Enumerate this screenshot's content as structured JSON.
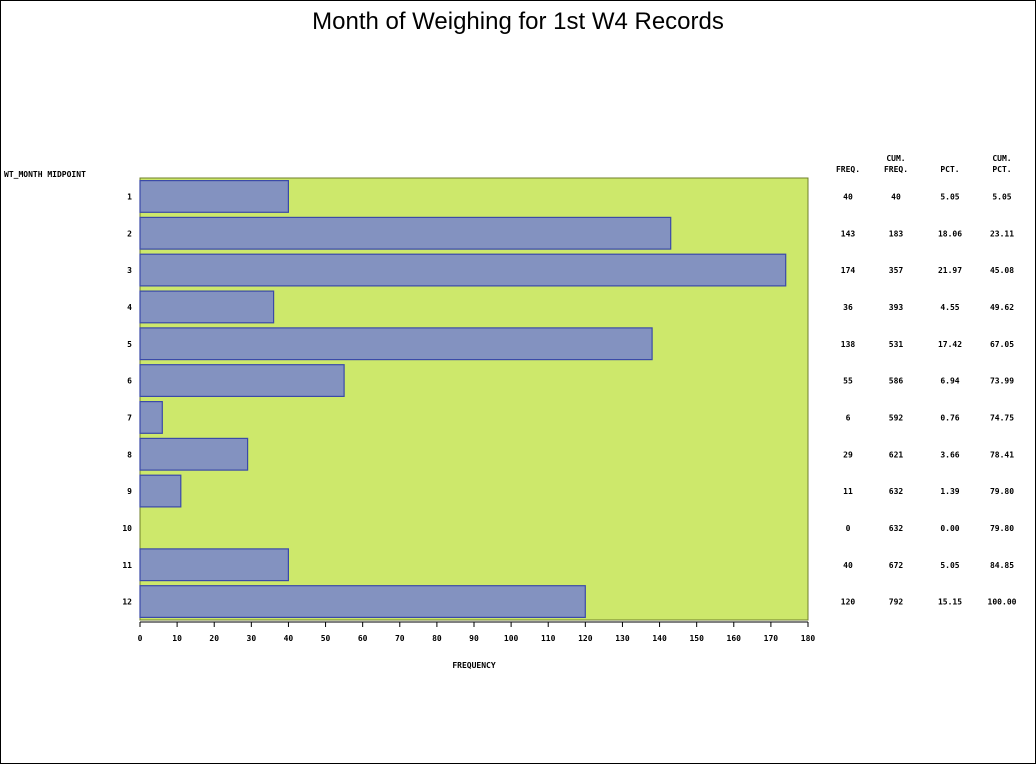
{
  "chart_data": {
    "type": "bar",
    "orientation": "horizontal",
    "title": "Month of Weighing for 1st W4 Records",
    "ylabel": "WT_MONTH MIDPOINT",
    "xlabel": "FREQUENCY",
    "xlim": [
      0,
      180
    ],
    "x_ticks": [
      "0",
      "10",
      "20",
      "30",
      "40",
      "50",
      "60",
      "70",
      "80",
      "90",
      "100",
      "110",
      "120",
      "130",
      "140",
      "150",
      "160",
      "170",
      "180"
    ],
    "categories": [
      "1",
      "2",
      "3",
      "4",
      "5",
      "6",
      "7",
      "8",
      "9",
      "10",
      "11",
      "12"
    ],
    "values": [
      40,
      143,
      174,
      36,
      138,
      55,
      6,
      29,
      11,
      0,
      40,
      120
    ],
    "table_headers": {
      "freq": [
        "FREQ."
      ],
      "cum_freq": [
        "CUM.",
        "FREQ."
      ],
      "pct": [
        "PCT."
      ],
      "cum_pct": [
        "CUM.",
        "PCT."
      ]
    },
    "table_rows": [
      {
        "freq": "40",
        "cum_freq": "40",
        "pct": "5.05",
        "cum_pct": "5.05"
      },
      {
        "freq": "143",
        "cum_freq": "183",
        "pct": "18.06",
        "cum_pct": "23.11"
      },
      {
        "freq": "174",
        "cum_freq": "357",
        "pct": "21.97",
        "cum_pct": "45.08"
      },
      {
        "freq": "36",
        "cum_freq": "393",
        "pct": "4.55",
        "cum_pct": "49.62"
      },
      {
        "freq": "138",
        "cum_freq": "531",
        "pct": "17.42",
        "cum_pct": "67.05"
      },
      {
        "freq": "55",
        "cum_freq": "586",
        "pct": "6.94",
        "cum_pct": "73.99"
      },
      {
        "freq": "6",
        "cum_freq": "592",
        "pct": "0.76",
        "cum_pct": "74.75"
      },
      {
        "freq": "29",
        "cum_freq": "621",
        "pct": "3.66",
        "cum_pct": "78.41"
      },
      {
        "freq": "11",
        "cum_freq": "632",
        "pct": "1.39",
        "cum_pct": "79.80"
      },
      {
        "freq": "0",
        "cum_freq": "632",
        "pct": "0.00",
        "cum_pct": "79.80"
      },
      {
        "freq": "40",
        "cum_freq": "672",
        "pct": "5.05",
        "cum_pct": "84.85"
      },
      {
        "freq": "120",
        "cum_freq": "792",
        "pct": "15.15",
        "cum_pct": "100.00"
      }
    ],
    "grid": false,
    "colors": {
      "plot_background": "#cde86b",
      "bar_fill": "#8392c0",
      "bar_stroke": "#3b4aa8"
    }
  }
}
